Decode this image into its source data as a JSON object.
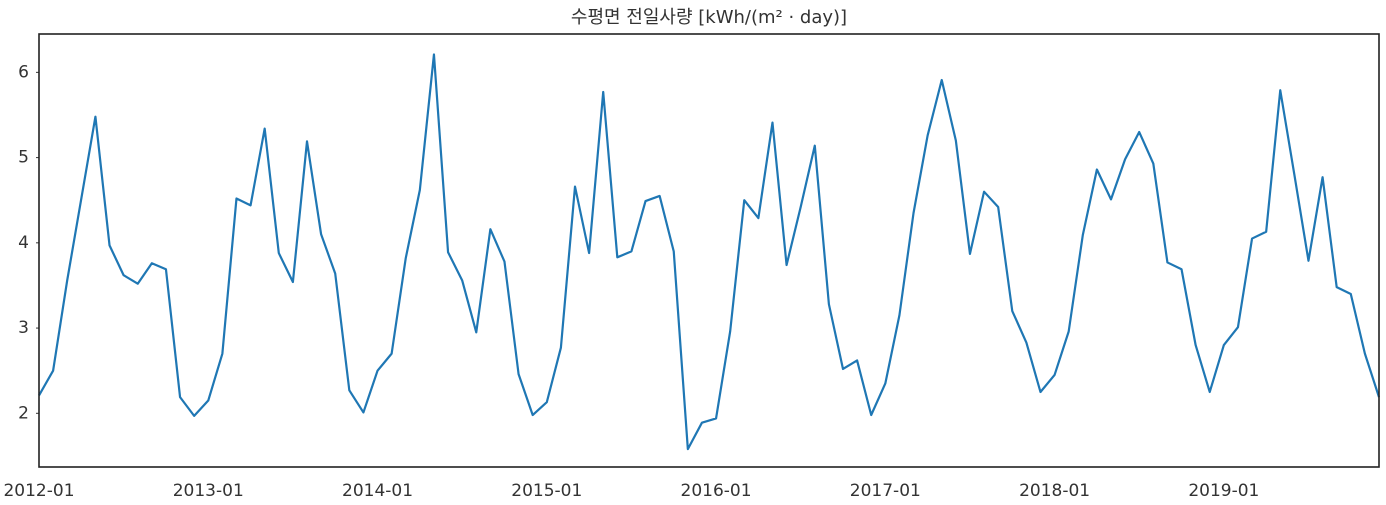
{
  "chart_data": {
    "type": "line",
    "title": "수평면 전일사량 [kWh/(m² · day)]",
    "x": [
      "2012-01",
      "2012-02",
      "2012-03",
      "2012-04",
      "2012-05",
      "2012-06",
      "2012-07",
      "2012-08",
      "2012-09",
      "2012-10",
      "2012-11",
      "2012-12",
      "2013-01",
      "2013-02",
      "2013-03",
      "2013-04",
      "2013-05",
      "2013-06",
      "2013-07",
      "2013-08",
      "2013-09",
      "2013-10",
      "2013-11",
      "2013-12",
      "2014-01",
      "2014-02",
      "2014-03",
      "2014-04",
      "2014-05",
      "2014-06",
      "2014-07",
      "2014-08",
      "2014-09",
      "2014-10",
      "2014-11",
      "2014-12",
      "2015-01",
      "2015-02",
      "2015-03",
      "2015-04",
      "2015-05",
      "2015-06",
      "2015-07",
      "2015-08",
      "2015-09",
      "2015-10",
      "2015-11",
      "2015-12",
      "2016-01",
      "2016-02",
      "2016-03",
      "2016-04",
      "2016-05",
      "2016-06",
      "2016-07",
      "2016-08",
      "2016-09",
      "2016-10",
      "2016-11",
      "2016-12",
      "2017-01",
      "2017-02",
      "2017-03",
      "2017-04",
      "2017-05",
      "2017-06",
      "2017-07",
      "2017-08",
      "2017-09",
      "2017-10",
      "2017-11",
      "2017-12",
      "2018-01",
      "2018-02",
      "2018-03",
      "2018-04",
      "2018-05",
      "2018-06",
      "2018-07",
      "2018-08",
      "2018-09",
      "2018-10",
      "2018-11",
      "2018-12",
      "2019-01",
      "2019-02",
      "2019-03",
      "2019-04",
      "2019-05",
      "2019-06",
      "2019-07",
      "2019-08",
      "2019-09",
      "2019-10",
      "2019-11",
      "2019-12"
    ],
    "series": [
      {
        "color": "#1f77b4",
        "values": [
          2.21,
          2.5,
          3.56,
          4.52,
          5.48,
          3.97,
          3.62,
          3.52,
          3.76,
          3.69,
          2.19,
          1.97,
          2.15,
          2.7,
          4.52,
          4.44,
          5.34,
          3.88,
          3.54,
          5.19,
          4.1,
          3.64,
          2.27,
          2.01,
          2.5,
          2.7,
          3.82,
          4.62,
          6.21,
          3.89,
          3.56,
          2.95,
          4.16,
          3.78,
          2.46,
          1.98,
          2.13,
          2.77,
          4.66,
          3.88,
          5.77,
          3.83,
          3.9,
          4.49,
          4.55,
          3.9,
          1.58,
          1.89,
          1.94,
          2.96,
          4.5,
          4.29,
          5.41,
          3.74,
          4.42,
          5.14,
          3.28,
          2.52,
          2.62,
          1.98,
          2.35,
          3.15,
          4.35,
          5.26,
          5.91,
          5.2,
          3.87,
          4.6,
          4.42,
          3.2,
          2.83,
          2.25,
          2.45,
          2.96,
          4.09,
          4.86,
          4.51,
          4.98,
          5.3,
          4.93,
          3.77,
          3.69,
          2.8,
          2.25,
          2.8,
          3.01,
          4.05,
          4.13,
          5.79,
          4.8,
          3.79,
          4.77,
          3.48,
          3.4,
          2.7,
          2.19
        ]
      }
    ],
    "xticks": [
      "2012-01",
      "2013-01",
      "2014-01",
      "2015-01",
      "2016-01",
      "2017-01",
      "2018-01",
      "2019-01"
    ],
    "ylim": [
      1.37,
      6.45
    ],
    "yticks": [
      2,
      3,
      4,
      5,
      6
    ],
    "grid": false
  }
}
